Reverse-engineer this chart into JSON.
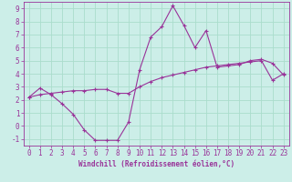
{
  "xlabel": "Windchill (Refroidissement éolien,°C)",
  "ylabel": "",
  "bg_color": "#cceee8",
  "grid_color": "#aaddcc",
  "line_color": "#993399",
  "xlim": [
    -0.5,
    23.5
  ],
  "ylim": [
    -1.5,
    9.5
  ],
  "xticks": [
    0,
    1,
    2,
    3,
    4,
    5,
    6,
    7,
    8,
    9,
    10,
    11,
    12,
    13,
    14,
    15,
    16,
    17,
    18,
    19,
    20,
    21,
    22,
    23
  ],
  "yticks": [
    -1,
    0,
    1,
    2,
    3,
    4,
    5,
    6,
    7,
    8,
    9
  ],
  "series1_x": [
    0,
    1,
    2,
    3,
    4,
    5,
    6,
    7,
    8,
    9,
    10,
    11,
    12,
    13,
    14,
    15,
    16,
    17,
    18,
    19,
    20,
    21,
    22,
    23
  ],
  "series1_y": [
    2.2,
    2.9,
    2.4,
    1.7,
    0.9,
    -0.3,
    -1.1,
    -1.1,
    -1.1,
    0.3,
    4.3,
    6.8,
    7.6,
    9.2,
    7.7,
    6.0,
    7.3,
    4.5,
    4.6,
    4.7,
    5.0,
    5.1,
    4.8,
    3.9
  ],
  "series2_x": [
    0,
    1,
    2,
    3,
    4,
    5,
    6,
    7,
    8,
    9,
    10,
    11,
    12,
    13,
    14,
    15,
    16,
    17,
    18,
    19,
    20,
    21,
    22,
    23
  ],
  "series2_y": [
    2.2,
    2.4,
    2.5,
    2.6,
    2.7,
    2.7,
    2.8,
    2.8,
    2.5,
    2.5,
    3.0,
    3.4,
    3.7,
    3.9,
    4.1,
    4.3,
    4.5,
    4.6,
    4.7,
    4.8,
    4.9,
    5.0,
    3.5,
    4.0
  ],
  "tick_fontsize": 5.5,
  "xlabel_fontsize": 5.5
}
